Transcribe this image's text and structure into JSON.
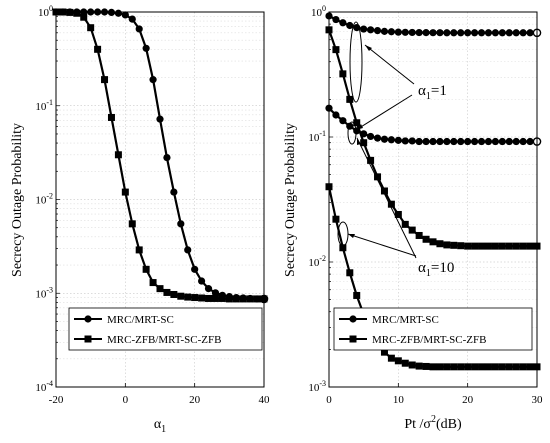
{
  "chart_data": [
    {
      "type": "line",
      "yscale": "log",
      "xlim": [
        -20,
        40
      ],
      "ylim": [
        0.0001,
        1
      ],
      "xticks": [
        "-20",
        "0",
        "20",
        "40"
      ],
      "yticks": [
        "10^0",
        "10^-1",
        "10^-2",
        "10^-3",
        "10^-4"
      ],
      "xlabel": "α1",
      "ylabel": "Secrecy Outage Probability",
      "grid": true,
      "legend_position": "bottom",
      "series": [
        {
          "name": "MRC/MRT-SC",
          "marker": "circle",
          "x": [
            -20,
            -18,
            -16,
            -14,
            -12,
            -10,
            -8,
            -6,
            -4,
            -2,
            0,
            2,
            4,
            6,
            8,
            10,
            12,
            14,
            16,
            18,
            20,
            22,
            24,
            26,
            28,
            30,
            32,
            34,
            36,
            38,
            40
          ],
          "y": [
            1.0,
            1.0,
            1.0,
            1.0,
            1.0,
            1.0,
            1.0,
            1.0,
            0.99,
            0.97,
            0.93,
            0.84,
            0.66,
            0.41,
            0.19,
            0.072,
            0.028,
            0.012,
            0.0055,
            0.0029,
            0.0018,
            0.00135,
            0.00112,
            0.00101,
            0.00095,
            0.00092,
            0.0009,
            0.00089,
            0.00088,
            0.00087,
            0.00087
          ]
        },
        {
          "name": "MRC-ZFB/MRT-SC-ZFB",
          "marker": "square",
          "x": [
            -20,
            -18,
            -16,
            -14,
            -12,
            -10,
            -8,
            -6,
            -4,
            -2,
            0,
            2,
            4,
            6,
            8,
            10,
            12,
            14,
            16,
            18,
            20,
            22,
            24,
            26,
            28,
            30,
            32,
            34,
            36,
            38,
            40
          ],
          "y": [
            1.0,
            1.0,
            0.99,
            0.97,
            0.88,
            0.68,
            0.4,
            0.19,
            0.075,
            0.03,
            0.012,
            0.0055,
            0.0029,
            0.0018,
            0.0013,
            0.00112,
            0.00102,
            0.00097,
            0.00093,
            0.00091,
            0.0009,
            0.00089,
            0.00088,
            0.00088,
            0.00088,
            0.00087,
            0.00087,
            0.00087,
            0.00087,
            0.00087,
            0.00087
          ]
        }
      ]
    },
    {
      "type": "line",
      "yscale": "log",
      "xlim": [
        0,
        30
      ],
      "ylim": [
        0.001,
        1
      ],
      "xticks": [
        "0",
        "10",
        "20",
        "30"
      ],
      "yticks": [
        "10^0",
        "10^-1",
        "10^-2",
        "10^-3"
      ],
      "xlabel": "Pt /σ2(dB)",
      "ylabel": "Secrecy Outage Probability",
      "grid": true,
      "legend_position": "bottom",
      "annotations": [
        {
          "text": "α1=1"
        },
        {
          "text": "α1=10"
        }
      ],
      "series": [
        {
          "name": "MRC/MRT-SC",
          "marker": "circle",
          "group": "α1=1",
          "x": [
            0,
            1,
            2,
            3,
            4,
            5,
            6,
            7,
            8,
            9,
            10,
            11,
            12,
            13,
            14,
            15,
            16,
            17,
            18,
            19,
            20,
            21,
            22,
            23,
            24,
            25,
            26,
            27,
            28,
            29,
            30
          ],
          "y": [
            0.93,
            0.87,
            0.82,
            0.78,
            0.75,
            0.73,
            0.72,
            0.71,
            0.7,
            0.695,
            0.69,
            0.688,
            0.686,
            0.685,
            0.684,
            0.683,
            0.683,
            0.682,
            0.682,
            0.682,
            0.682,
            0.682,
            0.682,
            0.682,
            0.682,
            0.682,
            0.682,
            0.682,
            0.682,
            0.682,
            0.682
          ]
        },
        {
          "name": "MRC-ZFB/MRT-SC-ZFB",
          "marker": "square",
          "group": "α1=1",
          "x": [
            0,
            1,
            2,
            3,
            4,
            5,
            6,
            7,
            8,
            9,
            10,
            11,
            12,
            13,
            14,
            15,
            16,
            17,
            18,
            19,
            20,
            21,
            22,
            23,
            24,
            25,
            26,
            27,
            28,
            29,
            30
          ],
          "y": [
            0.72,
            0.5,
            0.32,
            0.2,
            0.13,
            0.09,
            0.065,
            0.048,
            0.037,
            0.029,
            0.024,
            0.02,
            0.018,
            0.0163,
            0.0152,
            0.0145,
            0.014,
            0.0137,
            0.0136,
            0.0135,
            0.0134,
            0.0134,
            0.0134,
            0.0134,
            0.0134,
            0.0134,
            0.0134,
            0.0134,
            0.0134,
            0.0134,
            0.0134
          ]
        },
        {
          "name": "MRC/MRT-SC",
          "marker": "circle",
          "group": "α1=10",
          "x": [
            0,
            1,
            2,
            3,
            4,
            5,
            6,
            7,
            8,
            9,
            10,
            11,
            12,
            13,
            14,
            15,
            16,
            17,
            18,
            19,
            20,
            21,
            22,
            23,
            24,
            25,
            26,
            27,
            28,
            29,
            30
          ],
          "y": [
            0.17,
            0.15,
            0.135,
            0.122,
            0.112,
            0.106,
            0.101,
            0.098,
            0.096,
            0.095,
            0.094,
            0.093,
            0.093,
            0.092,
            0.092,
            0.092,
            0.092,
            0.092,
            0.092,
            0.092,
            0.092,
            0.092,
            0.092,
            0.092,
            0.092,
            0.092,
            0.092,
            0.092,
            0.092,
            0.092,
            0.092
          ]
        },
        {
          "name": "MRC-ZFB/MRT-SC-ZFB",
          "marker": "square",
          "group": "α1=10",
          "x": [
            0,
            1,
            2,
            3,
            4,
            5,
            6,
            7,
            8,
            9,
            10,
            11,
            12,
            13,
            14,
            15,
            16,
            17,
            18,
            19,
            20,
            21,
            22,
            23,
            24,
            25,
            26,
            27,
            28,
            29,
            30
          ],
          "y": [
            0.04,
            0.022,
            0.013,
            0.0082,
            0.0054,
            0.0038,
            0.0028,
            0.0022,
            0.0019,
            0.0017,
            0.00162,
            0.00155,
            0.0015,
            0.00147,
            0.00146,
            0.00145,
            0.00145,
            0.00145,
            0.00145,
            0.00145,
            0.00145,
            0.00145,
            0.00145,
            0.00145,
            0.00145,
            0.00145,
            0.00145,
            0.00145,
            0.00145,
            0.00145,
            0.00145
          ]
        }
      ]
    }
  ],
  "legend": {
    "entries": [
      "MRC/MRT-SC",
      "MRC-ZFB/MRT-SC-ZFB"
    ]
  }
}
